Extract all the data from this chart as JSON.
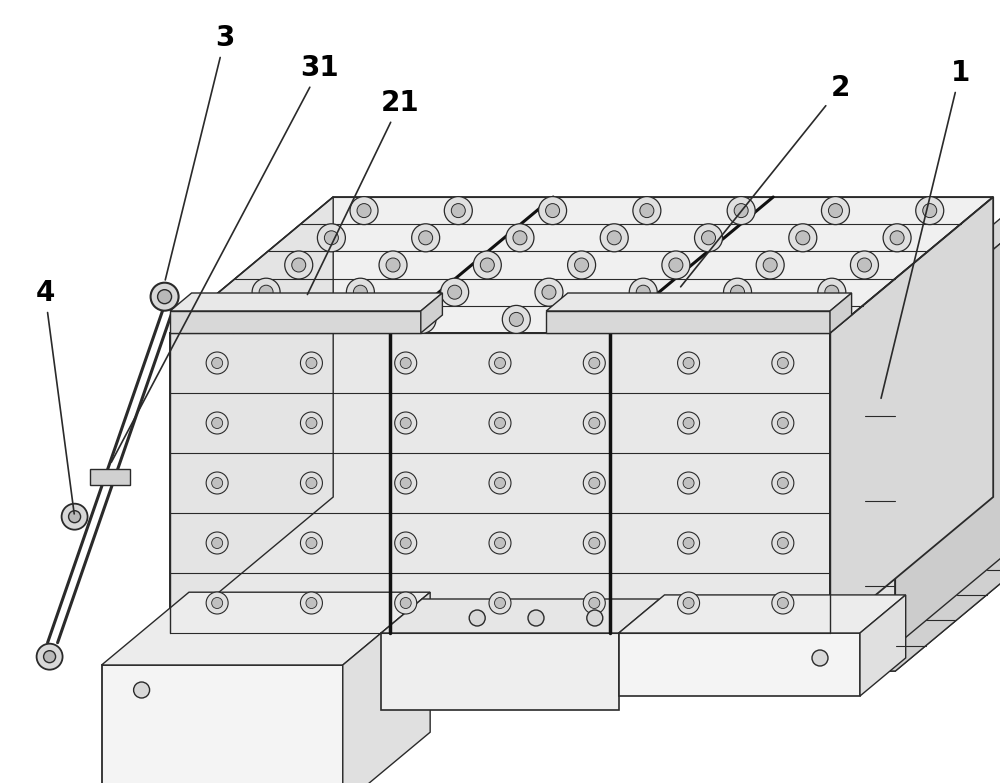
{
  "bg_color": "#ffffff",
  "line_color": "#2a2a2a",
  "face_top": "#f0f0f0",
  "face_front": "#e8e8e8",
  "face_right": "#d8d8d8",
  "face_side": "#e4e4e4",
  "bar_fill": "#dcdcdc",
  "circle_outer": "#e0e0e0",
  "circle_inner": "#c0c0c0",
  "label_fontsize": 20,
  "anno_color": "#000000",
  "label_color": "#000000",
  "separator_color": "#111111"
}
